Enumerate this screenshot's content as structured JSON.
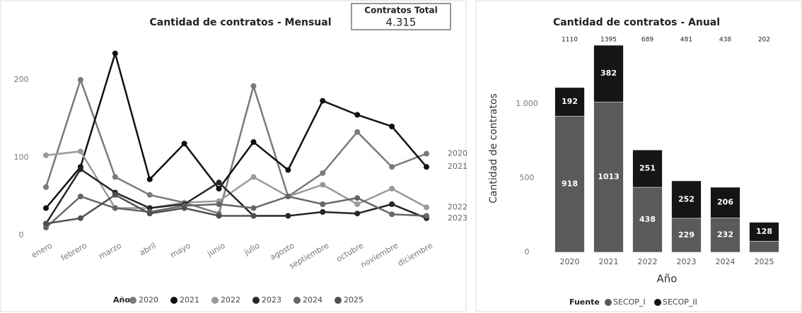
{
  "card": {
    "title": "Contratos Total",
    "value": "4.315"
  },
  "chart_data": [
    {
      "type": "line",
      "title": "Cantidad de contratos - Mensual",
      "legend_title": "Año",
      "categories": [
        "enero",
        "febrero",
        "marzo",
        "abril",
        "mayo",
        "junio",
        "julio",
        "agosto",
        "septiembre",
        "octubre",
        "noviembre",
        "diciembre"
      ],
      "series": [
        {
          "name": "2020",
          "color": "#7a7a7a",
          "values": [
            62,
            200,
            75,
            52,
            42,
            28,
            192,
            50,
            80,
            133,
            88,
            105
          ]
        },
        {
          "name": "2021",
          "color": "#111111",
          "values": [
            35,
            88,
            234,
            72,
            118,
            60,
            120,
            84,
            173,
            155,
            140,
            88
          ]
        },
        {
          "name": "2022",
          "color": "#9a9a9a",
          "values": [
            103,
            108,
            35,
            35,
            42,
            44,
            75,
            50,
            65,
            40,
            60,
            36
          ]
        },
        {
          "name": "2023",
          "color": "#262626",
          "values": [
            15,
            85,
            55,
            35,
            40,
            68,
            25,
            25,
            30,
            28,
            40,
            22
          ]
        },
        {
          "name": "2024",
          "color": "#666666",
          "values": [
            10,
            50,
            35,
            30,
            38,
            40,
            35,
            50,
            40,
            48,
            27,
            25
          ]
        },
        {
          "name": "2025",
          "color": "#505050",
          "values": [
            15,
            22,
            52,
            28,
            35,
            25,
            25,
            null,
            null,
            null,
            null,
            null
          ]
        }
      ],
      "end_labels": [
        0,
        1,
        2,
        3
      ],
      "ylim": [
        0,
        250
      ],
      "yticks": [
        0,
        100,
        200
      ]
    },
    {
      "type": "bar",
      "stacked": true,
      "title": "Cantidad de contratos - Anual",
      "legend_title": "Fuente",
      "x_label": "Año",
      "y_label": "Cantidad de contratos",
      "categories": [
        "2020",
        "2021",
        "2022",
        "2023",
        "2024",
        "2025"
      ],
      "series": [
        {
          "name": "SECOP_I",
          "color": "#5a5a5a",
          "values": [
            918,
            1013,
            438,
            229,
            232,
            74
          ]
        },
        {
          "name": "SECOP_II",
          "color": "#151515",
          "values": [
            192,
            382,
            251,
            252,
            206,
            128
          ]
        }
      ],
      "total_labels": [
        "1110",
        "1395",
        "689",
        "481",
        "438",
        "202"
      ],
      "ylim": [
        0,
        1400
      ],
      "yticks": [
        0,
        500,
        {
          "value": 1000,
          "label": "1.000"
        }
      ]
    }
  ]
}
